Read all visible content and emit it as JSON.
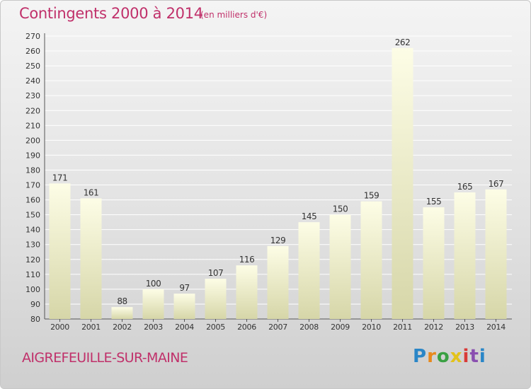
{
  "header": {
    "title": "Contingents 2000 à 2014",
    "subtitle": "(en milliers d'€)"
  },
  "footer": {
    "town": "AIGREFEUILLE-SUR-MAINE",
    "logo": [
      "P",
      "r",
      "o",
      "x",
      "i",
      "t",
      "i"
    ]
  },
  "colors": {
    "title": "#c0306a",
    "bar_top": "#fdfde6",
    "bar_bottom": "#d6d6a8",
    "grid": "#ffffff"
  },
  "chart_data": {
    "type": "bar",
    "title": "Contingents 2000 à 2014",
    "subtitle": "(en milliers d'€)",
    "categories": [
      "2000",
      "2001",
      "2002",
      "2003",
      "2004",
      "2005",
      "2006",
      "2007",
      "2008",
      "2009",
      "2010",
      "2011",
      "2012",
      "2013",
      "2014"
    ],
    "values": [
      171,
      161,
      88,
      100,
      97,
      107,
      116,
      129,
      145,
      150,
      159,
      262,
      155,
      165,
      167
    ],
    "ylim": [
      80,
      270
    ],
    "yticks": [
      80,
      90,
      100,
      110,
      120,
      130,
      140,
      150,
      160,
      170,
      180,
      190,
      200,
      210,
      220,
      230,
      240,
      250,
      260,
      270
    ],
    "grid": true,
    "data_labels": true
  }
}
